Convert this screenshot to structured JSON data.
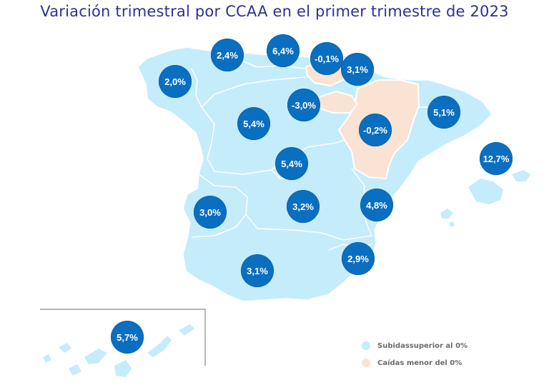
{
  "title": "Variación trimestral por CCAA en el primer trimestre de 2023",
  "colors": {
    "rise": "#c5ecfb",
    "fall": "#fbe3d3",
    "bubble": "#0b6fc1",
    "title": "#2e3192"
  },
  "regions": [
    {
      "name": "Galicia",
      "value": "2,0%"
    },
    {
      "name": "Asturias",
      "value": "2,4%"
    },
    {
      "name": "Cantabria",
      "value": "6,4%"
    },
    {
      "name": "País Vasco",
      "value": "-0,1%"
    },
    {
      "name": "Navarra",
      "value": "3,1%"
    },
    {
      "name": "La Rioja",
      "value": "-3,0%"
    },
    {
      "name": "Aragón",
      "value": "-0,2%"
    },
    {
      "name": "Cataluña",
      "value": "5,1%"
    },
    {
      "name": "Castilla y León",
      "value": "5,4%"
    },
    {
      "name": "Madrid",
      "value": "5,4%"
    },
    {
      "name": "Baleares",
      "value": "12,7%"
    },
    {
      "name": "Extremadura",
      "value": "3,0%"
    },
    {
      "name": "Castilla-La Mancha",
      "value": "3,2%"
    },
    {
      "name": "C. Valenciana",
      "value": "4,8%"
    },
    {
      "name": "Murcia",
      "value": "2,9%"
    },
    {
      "name": "Andalucía",
      "value": "3,1%"
    },
    {
      "name": "Canarias",
      "value": "5,7%"
    }
  ],
  "legend": [
    {
      "label": "Subidassuperior al 0%",
      "color": "#c5ecfb"
    },
    {
      "label": "Caídas menor del 0%",
      "color": "#fbe3d3"
    }
  ]
}
